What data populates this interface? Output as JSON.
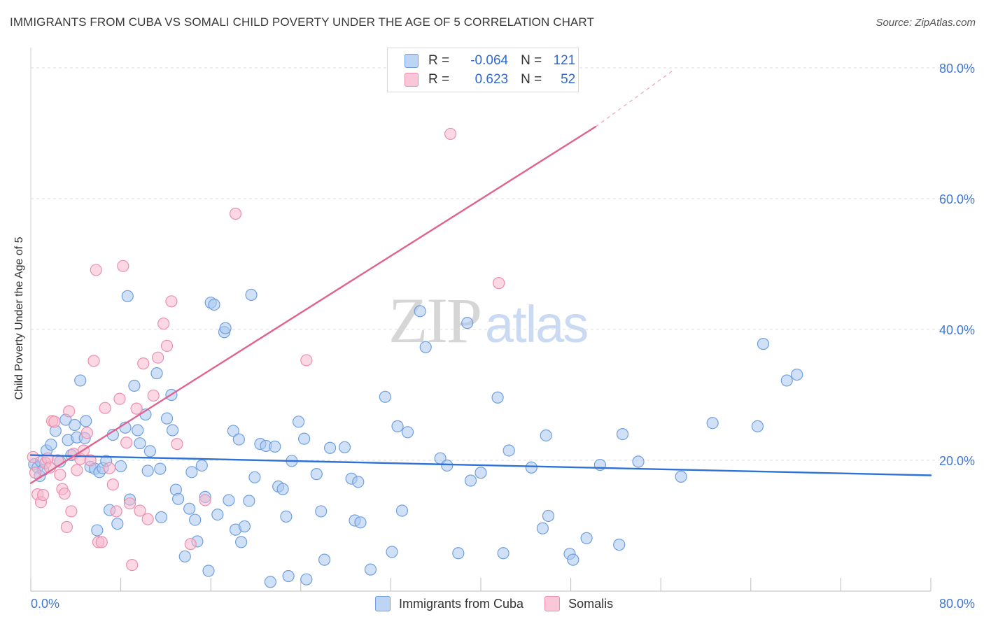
{
  "title": "IMMIGRANTS FROM CUBA VS SOMALI CHILD POVERTY UNDER THE AGE OF 5 CORRELATION CHART",
  "source": "Source: ZipAtlas.com",
  "watermark": {
    "zip": "ZIP",
    "atlas": "atlas"
  },
  "legend": {
    "r_label": "R =",
    "n_label": "N =",
    "series": [
      {
        "r": "-0.064",
        "n": "121"
      },
      {
        "r": "0.623",
        "n": "52"
      }
    ]
  },
  "bottom_legend": [
    "Immigrants from Cuba",
    "Somalis"
  ],
  "colors": {
    "cuba_fill": "#a9c8f0",
    "cuba_stroke": "#6f9fde",
    "cuba_line": "#2f72d6",
    "somali_fill": "#f7b8cc",
    "somali_stroke": "#ec8fae",
    "somali_line": "#e0638f",
    "tick_label": "#3f78d2",
    "grid": "#dcdcdc"
  },
  "chart_data": {
    "type": "scatter",
    "xlabel": "",
    "ylabel": "Child Poverty Under the Age of 5",
    "xlim": [
      0,
      80
    ],
    "ylim": [
      0,
      80
    ],
    "x_tick_labels": [
      "0.0%",
      "80.0%"
    ],
    "y_ticks": [
      20,
      40,
      60,
      80
    ],
    "y_tick_labels": [
      "20.0%",
      "40.0%",
      "60.0%",
      "80.0%"
    ],
    "grid": true,
    "legend_position": "top-center",
    "series": [
      {
        "name": "Immigrants from Cuba",
        "r": -0.064,
        "n": 121,
        "trend": {
          "x0": 0,
          "y0": 20.8,
          "x1": 80,
          "y1": 17.7
        },
        "points": [
          [
            0.3,
            19.4
          ],
          [
            0.6,
            18.9
          ],
          [
            0.8,
            17.6
          ],
          [
            0.9,
            19.8
          ],
          [
            1.1,
            18.5
          ],
          [
            1.4,
            21.5
          ],
          [
            1.8,
            22.4
          ],
          [
            2.2,
            24.5
          ],
          [
            2.6,
            19.8
          ],
          [
            3.1,
            26.2
          ],
          [
            3.3,
            23.1
          ],
          [
            3.6,
            20.8
          ],
          [
            3.9,
            25.4
          ],
          [
            4.1,
            23.5
          ],
          [
            4.4,
            32.2
          ],
          [
            4.8,
            23.4
          ],
          [
            4.9,
            26.0
          ],
          [
            5.3,
            19.0
          ],
          [
            5.7,
            18.7
          ],
          [
            5.9,
            9.3
          ],
          [
            6.1,
            18.2
          ],
          [
            6.4,
            18.8
          ],
          [
            6.7,
            19.9
          ],
          [
            7.0,
            12.4
          ],
          [
            7.3,
            23.9
          ],
          [
            7.7,
            10.3
          ],
          [
            8.0,
            19.1
          ],
          [
            8.4,
            25.0
          ],
          [
            8.6,
            45.1
          ],
          [
            8.8,
            14.0
          ],
          [
            9.2,
            31.4
          ],
          [
            9.5,
            24.6
          ],
          [
            9.7,
            22.6
          ],
          [
            10.2,
            27.0
          ],
          [
            10.4,
            18.4
          ],
          [
            10.6,
            21.4
          ],
          [
            11.2,
            33.3
          ],
          [
            11.5,
            18.7
          ],
          [
            11.6,
            11.3
          ],
          [
            12.1,
            26.4
          ],
          [
            12.5,
            30.0
          ],
          [
            12.6,
            24.6
          ],
          [
            12.9,
            15.5
          ],
          [
            13.1,
            14.1
          ],
          [
            13.7,
            5.3
          ],
          [
            14.1,
            12.6
          ],
          [
            14.3,
            18.2
          ],
          [
            14.6,
            10.9
          ],
          [
            14.8,
            7.6
          ],
          [
            15.2,
            19.2
          ],
          [
            15.5,
            14.4
          ],
          [
            15.8,
            3.1
          ],
          [
            16.0,
            44.1
          ],
          [
            16.3,
            43.8
          ],
          [
            16.6,
            11.7
          ],
          [
            17.2,
            39.6
          ],
          [
            17.3,
            40.2
          ],
          [
            17.6,
            13.9
          ],
          [
            18.0,
            24.5
          ],
          [
            18.2,
            9.4
          ],
          [
            18.5,
            23.2
          ],
          [
            18.7,
            7.5
          ],
          [
            19.0,
            9.9
          ],
          [
            19.4,
            13.8
          ],
          [
            19.6,
            45.3
          ],
          [
            19.9,
            17.4
          ],
          [
            20.4,
            22.5
          ],
          [
            20.9,
            22.2
          ],
          [
            21.3,
            1.4
          ],
          [
            21.7,
            22.1
          ],
          [
            22.0,
            16.0
          ],
          [
            22.4,
            15.6
          ],
          [
            22.7,
            11.4
          ],
          [
            22.9,
            2.3
          ],
          [
            23.2,
            19.9
          ],
          [
            23.8,
            25.9
          ],
          [
            24.3,
            23.3
          ],
          [
            24.5,
            1.8
          ],
          [
            25.4,
            17.9
          ],
          [
            25.8,
            12.2
          ],
          [
            26.1,
            4.8
          ],
          [
            26.6,
            21.9
          ],
          [
            27.9,
            22.0
          ],
          [
            28.5,
            17.2
          ],
          [
            28.8,
            10.8
          ],
          [
            29.1,
            16.7
          ],
          [
            29.3,
            10.5
          ],
          [
            30.2,
            3.3
          ],
          [
            31.5,
            29.7
          ],
          [
            32.1,
            6.0
          ],
          [
            32.6,
            25.2
          ],
          [
            33.0,
            12.3
          ],
          [
            33.5,
            24.3
          ],
          [
            34.6,
            42.8
          ],
          [
            35.1,
            37.3
          ],
          [
            36.4,
            20.3
          ],
          [
            37.0,
            19.2
          ],
          [
            38.0,
            5.8
          ],
          [
            38.8,
            41.0
          ],
          [
            39.1,
            16.9
          ],
          [
            40.0,
            18.1
          ],
          [
            41.5,
            29.6
          ],
          [
            42.0,
            5.8
          ],
          [
            42.5,
            21.5
          ],
          [
            44.5,
            18.9
          ],
          [
            45.5,
            9.6
          ],
          [
            45.8,
            23.8
          ],
          [
            46.0,
            11.5
          ],
          [
            47.9,
            5.7
          ],
          [
            48.2,
            4.8
          ],
          [
            49.4,
            8.1
          ],
          [
            50.6,
            19.3
          ],
          [
            52.3,
            7.1
          ],
          [
            52.6,
            24.0
          ],
          [
            54.0,
            19.8
          ],
          [
            57.8,
            17.5
          ],
          [
            60.6,
            25.7
          ],
          [
            64.6,
            25.2
          ],
          [
            65.1,
            37.8
          ],
          [
            67.2,
            32.2
          ],
          [
            68.1,
            33.1
          ]
        ]
      },
      {
        "name": "Somalis",
        "r": 0.623,
        "n": 52,
        "trend": {
          "x0": 0,
          "y0": 16.5,
          "x1": 50.2,
          "y1": 71.0
        },
        "trend_dashed_to": {
          "x": 57,
          "y": 79.5
        },
        "points": [
          [
            0.2,
            20.5
          ],
          [
            0.4,
            18.1
          ],
          [
            0.6,
            14.8
          ],
          [
            0.9,
            13.6
          ],
          [
            1.1,
            14.7
          ],
          [
            1.3,
            19.6
          ],
          [
            1.5,
            20.3
          ],
          [
            1.7,
            18.9
          ],
          [
            1.9,
            26.0
          ],
          [
            2.1,
            25.9
          ],
          [
            2.4,
            20.0
          ],
          [
            2.6,
            17.8
          ],
          [
            2.8,
            15.6
          ],
          [
            3.0,
            14.9
          ],
          [
            3.2,
            9.8
          ],
          [
            3.4,
            27.5
          ],
          [
            3.6,
            12.2
          ],
          [
            3.8,
            21.0
          ],
          [
            4.1,
            18.5
          ],
          [
            4.4,
            20.2
          ],
          [
            4.7,
            21.5
          ],
          [
            5.0,
            24.2
          ],
          [
            5.3,
            20.0
          ],
          [
            5.6,
            35.2
          ],
          [
            5.8,
            49.1
          ],
          [
            6.0,
            7.5
          ],
          [
            6.3,
            7.5
          ],
          [
            6.6,
            28.0
          ],
          [
            7.0,
            18.8
          ],
          [
            7.3,
            16.3
          ],
          [
            7.6,
            12.2
          ],
          [
            7.9,
            29.4
          ],
          [
            8.2,
            49.7
          ],
          [
            8.5,
            22.7
          ],
          [
            8.8,
            13.4
          ],
          [
            9.0,
            4.0
          ],
          [
            9.4,
            27.9
          ],
          [
            9.7,
            12.3
          ],
          [
            10.0,
            34.8
          ],
          [
            10.4,
            11.0
          ],
          [
            10.9,
            29.9
          ],
          [
            11.3,
            35.7
          ],
          [
            11.8,
            40.9
          ],
          [
            12.1,
            37.5
          ],
          [
            12.5,
            44.3
          ],
          [
            13.0,
            22.5
          ],
          [
            14.2,
            7.2
          ],
          [
            15.5,
            13.9
          ],
          [
            18.2,
            57.7
          ],
          [
            24.5,
            35.3
          ],
          [
            37.3,
            69.9
          ],
          [
            41.6,
            47.1
          ]
        ]
      }
    ]
  }
}
